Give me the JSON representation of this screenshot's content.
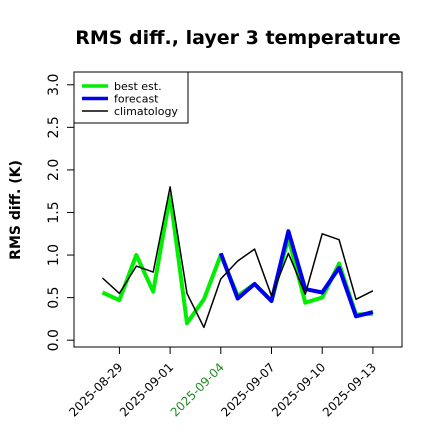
{
  "chart_data": {
    "type": "line",
    "title": "RMS diff., layer 3 temperature",
    "ylabel": "RMS diff. (K)",
    "xlabel": "",
    "ylim": [
      -0.08,
      3.15
    ],
    "y_ticks": [
      "0.0",
      "0.5",
      "1.0",
      "1.5",
      "2.0",
      "2.5",
      "3.0"
    ],
    "x": [
      "2025-08-28",
      "2025-08-29",
      "2025-08-30",
      "2025-08-31",
      "2025-09-01",
      "2025-09-02",
      "2025-09-03",
      "2025-09-04",
      "2025-09-05",
      "2025-09-06",
      "2025-09-07",
      "2025-09-08",
      "2025-09-09",
      "2025-09-10",
      "2025-09-11",
      "2025-09-12",
      "2025-09-13"
    ],
    "x_tick_labels": [
      {
        "text": "2025-08-29",
        "color": "#000000"
      },
      {
        "text": "2025-09-01",
        "color": "#000000"
      },
      {
        "text": "2025-09-04",
        "color": "#228b22"
      },
      {
        "text": "2025-09-07",
        "color": "#000000"
      },
      {
        "text": "2025-09-10",
        "color": "#000000"
      },
      {
        "text": "2025-09-13",
        "color": "#000000"
      }
    ],
    "legend_position": "top-left",
    "grid": false,
    "series": [
      {
        "name": "best est.",
        "color": "#00ee00",
        "width": 4,
        "values": [
          0.56,
          0.47,
          1.0,
          0.57,
          1.7,
          0.2,
          0.48,
          1.0,
          0.52,
          0.66,
          0.46,
          1.2,
          0.44,
          0.5,
          0.9,
          0.3,
          0.31
        ]
      },
      {
        "name": "forecast",
        "color": "#0000ee",
        "width": 4,
        "values": [
          null,
          null,
          null,
          null,
          null,
          null,
          null,
          1.02,
          0.49,
          0.66,
          0.46,
          1.28,
          0.6,
          0.56,
          0.85,
          0.28,
          0.33
        ]
      },
      {
        "name": "climatology",
        "color": "#000000",
        "width": 1.5,
        "values": [
          0.73,
          0.55,
          0.87,
          0.8,
          1.8,
          0.55,
          0.15,
          0.72,
          0.93,
          1.07,
          0.52,
          1.02,
          0.54,
          1.25,
          1.18,
          0.48,
          0.58
        ]
      }
    ]
  }
}
